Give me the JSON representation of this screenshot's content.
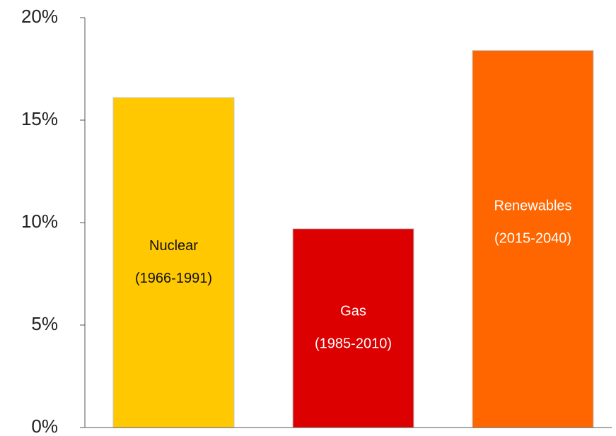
{
  "chart_data": {
    "type": "bar",
    "categories": [
      "Nuclear",
      "Gas",
      "Renewables"
    ],
    "periods": [
      "(1966-1991)",
      "(1985-2010)",
      "(2015-2040)"
    ],
    "values": [
      16.1,
      9.7,
      18.4
    ],
    "colors": [
      "#ffc800",
      "#dd0000",
      "#ff6600"
    ],
    "ylim": [
      0,
      20
    ],
    "yticks": [
      {
        "value": 0,
        "label": "0%"
      },
      {
        "value": 5,
        "label": "5%"
      },
      {
        "value": 10,
        "label": "10%"
      },
      {
        "value": 15,
        "label": "15%"
      },
      {
        "value": 20,
        "label": "20%"
      }
    ],
    "grid": false
  }
}
